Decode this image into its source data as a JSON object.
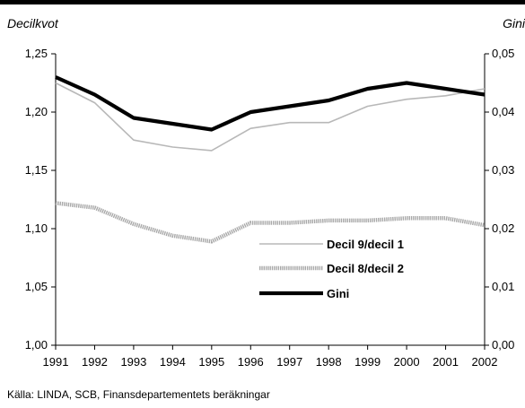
{
  "chart_data": {
    "type": "line",
    "left_axis_title": "Decilkvot",
    "right_axis_title": "Gini",
    "x": [
      1991,
      1992,
      1993,
      1994,
      1995,
      1996,
      1997,
      1998,
      1999,
      2000,
      2001,
      2002
    ],
    "x_labels": [
      "1991",
      "1992",
      "1993",
      "1994",
      "1995",
      "1996",
      "1997",
      "1998",
      "1999",
      "2000",
      "2001",
      "2002"
    ],
    "y_left_lim": [
      1.0,
      1.25
    ],
    "y_left_ticks": [
      "1,00",
      "1,05",
      "1,10",
      "1,15",
      "1,20",
      "1,25"
    ],
    "y_right_lim": [
      0.0,
      0.05
    ],
    "y_right_ticks": [
      "0,00",
      "0,01",
      "0,02",
      "0,03",
      "0,04",
      "0,05"
    ],
    "series": [
      {
        "name": "Decil 9/decil 1",
        "axis": "left",
        "color": "#b8b8b8",
        "style": "thin",
        "values": [
          1.225,
          1.208,
          1.176,
          1.17,
          1.167,
          1.186,
          1.191,
          1.191,
          1.205,
          1.211,
          1.214,
          1.22
        ]
      },
      {
        "name": "Decil 8/decil 2",
        "axis": "left",
        "color": "#a8a8a8",
        "style": "thick",
        "values": [
          1.122,
          1.118,
          1.104,
          1.094,
          1.089,
          1.105,
          1.105,
          1.107,
          1.107,
          1.109,
          1.109,
          1.103
        ]
      },
      {
        "name": "Gini",
        "axis": "right",
        "color": "#000000",
        "style": "bold",
        "values": [
          0.046,
          0.043,
          0.039,
          0.038,
          0.037,
          0.04,
          0.041,
          0.042,
          0.044,
          0.045,
          0.044,
          0.043
        ]
      }
    ],
    "legend_position": "center-right",
    "grid": false,
    "source": "Källa: LINDA, SCB, Finansdepartementets beräkningar"
  }
}
